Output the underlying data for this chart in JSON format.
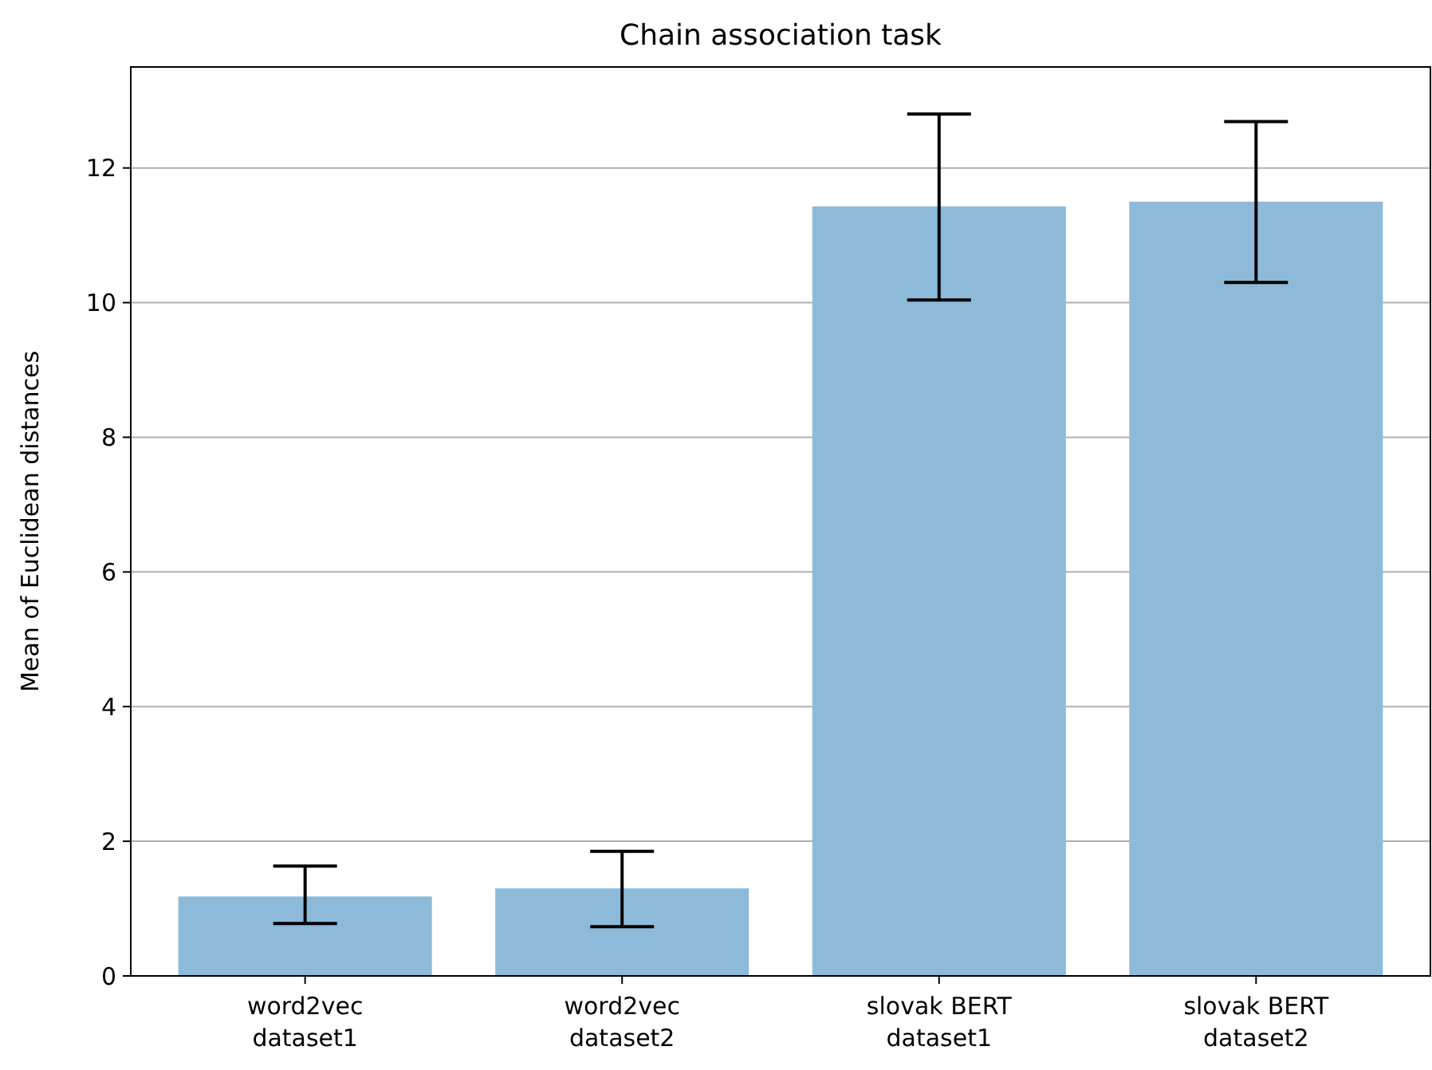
{
  "chart_data": {
    "type": "bar",
    "title": "Chain association task",
    "ylabel": "Mean of Euclidean distances",
    "categories": [
      "word2vec\ndataset1",
      "word2vec\ndataset2",
      "slovak BERT\ndataset1",
      "slovak BERT\ndataset2"
    ],
    "values": [
      1.18,
      1.3,
      11.43,
      11.5
    ],
    "color": "#8ebad9",
    "errors": [
      [
        0.78,
        1.63
      ],
      [
        0.73,
        1.85
      ],
      [
        10.04,
        12.8
      ],
      [
        10.3,
        12.69
      ]
    ],
    "ylim": [
      0,
      13.5
    ],
    "yticks": [
      0,
      2,
      4,
      6,
      8,
      10,
      12
    ],
    "grid": "y"
  }
}
